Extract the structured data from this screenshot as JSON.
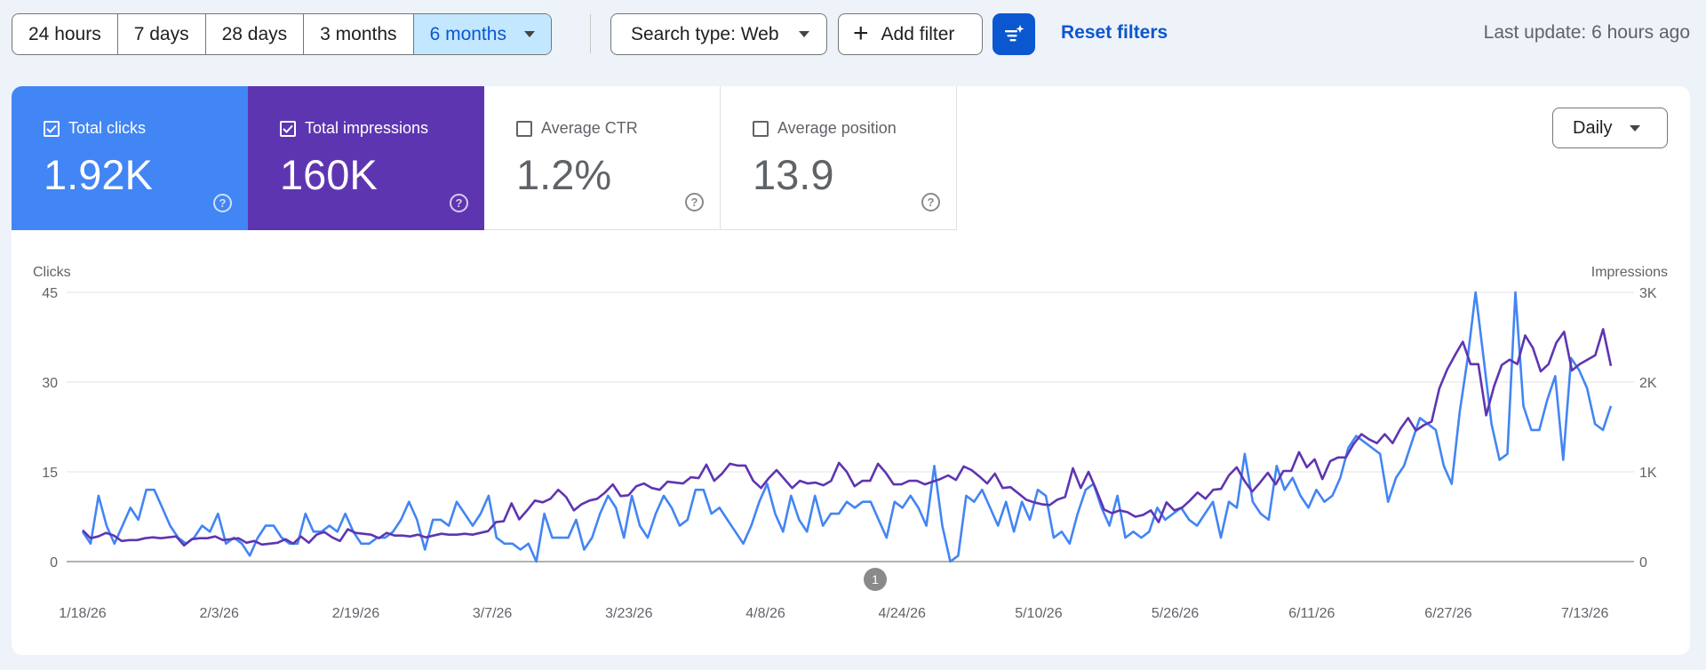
{
  "toolbar": {
    "ranges": [
      "24 hours",
      "7 days",
      "28 days",
      "3 months",
      "6 months"
    ],
    "active_range": "6 months",
    "search_type": "Search type: Web",
    "add_filter": "Add filter",
    "reset_filters": "Reset filters",
    "last_update": "Last update: 6 hours ago"
  },
  "metrics": {
    "clicks": {
      "label": "Total clicks",
      "value": "1.92K",
      "checked": true
    },
    "impressions": {
      "label": "Total impressions",
      "value": "160K",
      "checked": true
    },
    "ctr": {
      "label": "Average CTR",
      "value": "1.2%",
      "checked": false
    },
    "position": {
      "label": "Average position",
      "value": "13.9",
      "checked": false
    }
  },
  "granularity": "Daily",
  "colors": {
    "clicks": "#4285f4",
    "impressions": "#5e35b1",
    "accent": "#0b57d0"
  },
  "chart_data": {
    "type": "line",
    "left_axis_label": "Clicks",
    "right_axis_label": "Impressions",
    "y_left_ticks": [
      "0",
      "15",
      "30",
      "45"
    ],
    "y_left_range": [
      0,
      45
    ],
    "y_right_ticks": [
      "0",
      "1K",
      "2K",
      "3K"
    ],
    "y_right_range": [
      0,
      3000
    ],
    "x_tick_labels": [
      "1/18/26",
      "2/3/26",
      "2/19/26",
      "3/7/26",
      "3/23/26",
      "4/8/26",
      "4/24/26",
      "5/10/26",
      "5/26/26",
      "6/11/26",
      "6/27/26",
      "7/13/26"
    ],
    "annotation": "1",
    "grid": true,
    "series": [
      {
        "name": "Clicks",
        "axis": "left",
        "values": [
          5,
          3,
          11,
          6,
          3,
          6,
          9,
          7,
          12,
          12,
          9,
          6,
          4,
          3,
          4,
          6,
          5,
          8,
          3,
          4,
          3,
          1,
          4,
          6,
          6,
          4,
          3,
          3,
          8,
          5,
          5,
          6,
          5,
          8,
          5,
          3,
          3,
          4,
          4,
          5,
          7,
          10,
          7,
          2,
          7,
          7,
          6,
          10,
          8,
          6,
          8,
          11,
          4,
          3,
          3,
          2,
          3,
          0,
          8,
          4,
          4,
          4,
          7,
          2,
          4,
          8,
          11,
          9,
          4,
          11,
          6,
          4,
          8,
          11,
          9,
          6,
          7,
          12,
          12,
          8,
          9,
          7,
          5,
          3,
          6,
          10,
          13,
          8,
          5,
          11,
          7,
          5,
          11,
          6,
          8,
          8,
          10,
          9,
          10,
          10,
          7,
          4,
          10,
          9,
          11,
          9,
          6,
          16,
          6,
          0,
          1,
          11,
          10,
          12,
          9,
          6,
          10,
          5,
          10,
          7,
          12,
          11,
          4,
          5,
          3,
          8,
          12,
          13,
          9,
          6,
          11,
          4,
          5,
          4,
          5,
          9,
          7,
          8,
          9,
          7,
          6,
          8,
          10,
          4,
          10,
          9,
          18,
          10,
          8,
          7,
          16,
          12,
          14,
          11,
          9,
          12,
          10,
          11,
          14,
          19,
          21,
          20,
          19,
          18,
          10,
          14,
          16,
          20,
          24,
          23,
          22,
          16,
          13,
          25,
          34,
          45,
          34,
          23,
          17,
          18,
          45,
          26,
          22,
          22,
          27,
          31,
          17,
          34,
          32,
          29,
          23,
          22,
          26
        ]
      },
      {
        "name": "Impressions",
        "axis": "right",
        "values": [
          350,
          260,
          280,
          320,
          290,
          230,
          240,
          240,
          260,
          270,
          260,
          270,
          280,
          180,
          250,
          260,
          260,
          280,
          240,
          250,
          260,
          210,
          230,
          190,
          200,
          210,
          250,
          200,
          280,
          210,
          300,
          330,
          270,
          230,
          360,
          320,
          310,
          300,
          260,
          320,
          290,
          290,
          280,
          300,
          270,
          290,
          310,
          300,
          300,
          310,
          300,
          320,
          340,
          440,
          450,
          650,
          470,
          570,
          680,
          660,
          700,
          800,
          720,
          570,
          640,
          680,
          700,
          770,
          860,
          730,
          740,
          840,
          870,
          820,
          800,
          890,
          880,
          870,
          940,
          930,
          1080,
          900,
          980,
          1090,
          1070,
          1070,
          900,
          820,
          930,
          1020,
          920,
          820,
          900,
          870,
          880,
          850,
          900,
          1100,
          1000,
          840,
          900,
          900,
          1090,
          990,
          860,
          860,
          900,
          900,
          860,
          890,
          920,
          960,
          910,
          1060,
          1020,
          950,
          870,
          980,
          820,
          830,
          760,
          690,
          660,
          640,
          630,
          690,
          720,
          1040,
          820,
          1000,
          800,
          580,
          540,
          570,
          550,
          500,
          520,
          570,
          440,
          660,
          570,
          600,
          680,
          770,
          700,
          800,
          810,
          960,
          1050,
          900,
          780,
          880,
          990,
          860,
          1010,
          1010,
          1220,
          1050,
          1140,
          920,
          1120,
          1160,
          1160,
          1310,
          1420,
          1360,
          1320,
          1420,
          1320,
          1480,
          1600,
          1460,
          1520,
          1560,
          1930,
          2140,
          2300,
          2450,
          2200,
          2200,
          1630,
          1950,
          2190,
          2250,
          2200,
          2520,
          2380,
          2120,
          2200,
          2440,
          2560,
          2130,
          2200,
          2250,
          2300,
          2590,
          2180
        ]
      }
    ]
  }
}
